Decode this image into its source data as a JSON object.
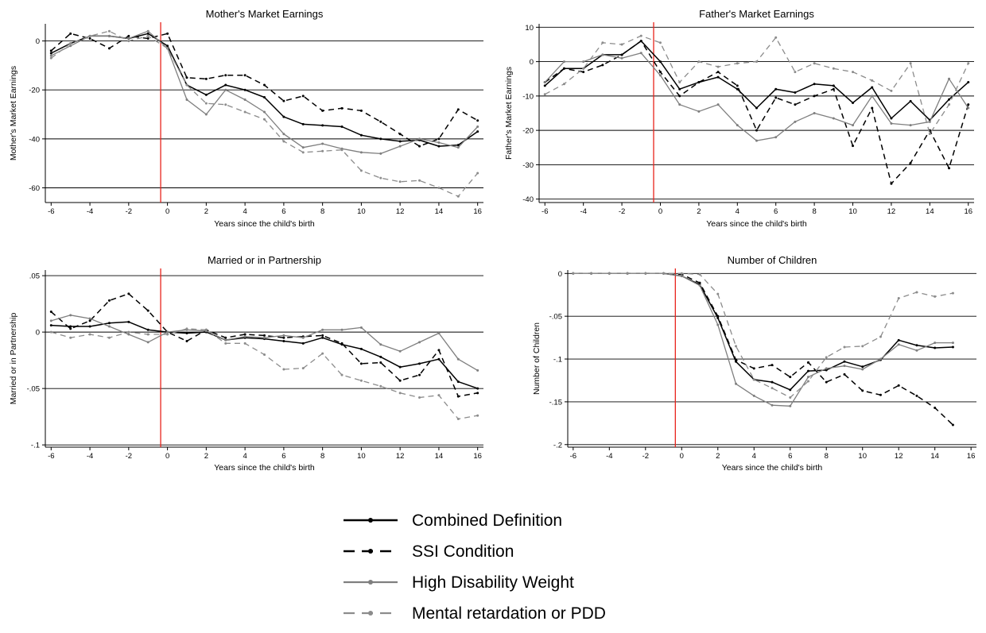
{
  "colors": {
    "combined": "#000000",
    "ssi": "#000000",
    "high": "#7f7f7f",
    "mental": "#8c8c8c",
    "event_line": "#e8231c",
    "grid": "#000000"
  },
  "legend": {
    "items": [
      {
        "key": "combined",
        "label": "Combined Definition",
        "style": "solid",
        "color": "#000000"
      },
      {
        "key": "ssi",
        "label": "SSI Condition",
        "style": "dashed",
        "color": "#000000"
      },
      {
        "key": "high",
        "label": "High Disability Weight",
        "style": "solid",
        "color": "#7f7f7f"
      },
      {
        "key": "mental",
        "label": "Mental retardation or PDD",
        "style": "dashed",
        "color": "#8c8c8c"
      }
    ]
  },
  "chart_data": [
    {
      "type": "line",
      "title": "Mother's Market Earnings",
      "xlabel": "Years since the child's birth",
      "ylabel": "Mother's Market Earnings",
      "xlim": [
        -6.3,
        16.3
      ],
      "ylim": [
        -66,
        7
      ],
      "xticks": [
        -6,
        -4,
        -2,
        0,
        2,
        4,
        6,
        8,
        10,
        12,
        14,
        16
      ],
      "xtick_labels": [
        "-6",
        "-4",
        "-2",
        "0",
        "2",
        "4",
        "6",
        "8",
        "10",
        "12",
        "14",
        "16"
      ],
      "yticks": [
        0,
        -20,
        -40,
        -60
      ],
      "ytick_labels": [
        "0",
        "-20",
        "-40",
        "-60"
      ],
      "grid": true,
      "event_line_x": -0.35,
      "x": [
        -6,
        -5,
        -4,
        -3,
        -2,
        -1,
        0,
        1,
        2,
        3,
        4,
        5,
        6,
        7,
        8,
        9,
        10,
        11,
        12,
        13,
        14,
        15,
        16
      ],
      "series": [
        {
          "name": "Combined Definition",
          "key": "combined",
          "values": [
            -5,
            -1,
            2,
            2,
            1,
            3,
            -2,
            -18,
            -22,
            -18,
            -20,
            -23,
            -31,
            -34,
            -34.5,
            -35,
            -38.5,
            -40,
            -41,
            -40.5,
            -43,
            -42.5,
            -37
          ]
        },
        {
          "name": "SSI Condition",
          "key": "ssi",
          "values": [
            -4,
            3,
            1,
            -3,
            2,
            1,
            3,
            -15,
            -15.5,
            -14,
            -14,
            -18,
            -24.5,
            -22.5,
            -28.5,
            -27.5,
            -28.5,
            -33,
            -38,
            -43,
            -40,
            -28,
            -32.5
          ]
        },
        {
          "name": "High Disability Weight",
          "key": "high",
          "values": [
            -6,
            -2,
            2,
            2,
            1,
            4,
            -3,
            -24,
            -30,
            -20,
            -24,
            -29,
            -38,
            -43.5,
            -42,
            -44,
            -45.5,
            -46,
            -43,
            -40,
            -41.5,
            -43.5,
            -35
          ]
        },
        {
          "name": "Mental retardation or PDD",
          "key": "mental",
          "values": [
            -7,
            -1,
            2,
            4,
            0,
            2,
            -3,
            -18,
            -25.5,
            -26,
            -29,
            -32,
            -41,
            -45.5,
            -45,
            -44.5,
            -53,
            -56,
            -57.5,
            -57,
            -60,
            -63.5,
            -54
          ]
        }
      ]
    },
    {
      "type": "line",
      "title": "Father's Market Earnings",
      "xlabel": "Years since the child's birth",
      "ylabel": "Father's Market Earnings",
      "xlim": [
        -6.3,
        16.3
      ],
      "ylim": [
        -41,
        11
      ],
      "xticks": [
        -6,
        -4,
        -2,
        0,
        2,
        4,
        6,
        8,
        10,
        12,
        14,
        16
      ],
      "xtick_labels": [
        "-6",
        "-4",
        "-2",
        "0",
        "2",
        "4",
        "6",
        "8",
        "10",
        "12",
        "14",
        "16"
      ],
      "yticks": [
        10,
        0,
        -10,
        -20,
        -30,
        -40
      ],
      "ytick_labels": [
        "10",
        "0",
        "-10",
        "-20",
        "-30",
        "-40"
      ],
      "grid": true,
      "event_line_x": -0.35,
      "x": [
        -6,
        -5,
        -4,
        -3,
        -2,
        -1,
        0,
        1,
        2,
        3,
        4,
        5,
        6,
        7,
        8,
        9,
        10,
        11,
        12,
        13,
        14,
        15,
        16
      ],
      "series": [
        {
          "name": "Combined Definition",
          "key": "combined",
          "values": [
            -7,
            -2,
            -2,
            2,
            2,
            6,
            0,
            -8,
            -6,
            -4.5,
            -8,
            -13.5,
            -8,
            -9,
            -6.5,
            -7,
            -12,
            -7.5,
            -16.5,
            -11.5,
            -17,
            -11,
            -6
          ]
        },
        {
          "name": "SSI Condition",
          "key": "ssi",
          "values": [
            -6,
            -2,
            -3,
            -1,
            2,
            6,
            -3,
            -10,
            -6,
            -3,
            -7,
            -20,
            -10.5,
            -12.5,
            -10,
            -8,
            -24.5,
            -13.5,
            -35.5,
            -29.5,
            -20,
            -31,
            -12.5
          ]
        },
        {
          "name": "High Disability Weight",
          "key": "high",
          "values": [
            -6,
            0,
            0,
            2,
            1,
            2.5,
            -4,
            -12.5,
            -14.5,
            -12.5,
            -18.5,
            -23,
            -22,
            -17.5,
            -15,
            -16.5,
            -18.5,
            -10,
            -18,
            -18.5,
            -17.5,
            -5,
            -13.5
          ]
        },
        {
          "name": "Mental retardation or PDD",
          "key": "mental",
          "values": [
            -9.5,
            -6.5,
            -2,
            5.5,
            5,
            7.5,
            5.5,
            -6,
            0,
            -1.5,
            -0.5,
            0,
            7,
            -3,
            -0.5,
            -2,
            -3,
            -5.5,
            -8.5,
            -0.5,
            -21,
            -12.5,
            -0.5
          ]
        }
      ]
    },
    {
      "type": "line",
      "title": "Married or in Partnership",
      "xlabel": "Years since the child's birth",
      "ylabel": "Married or in Partnership",
      "xlim": [
        -6.3,
        16.3
      ],
      "ylim": [
        -0.102,
        0.055
      ],
      "xticks": [
        -6,
        -4,
        -2,
        0,
        2,
        4,
        6,
        8,
        10,
        12,
        14,
        16
      ],
      "xtick_labels": [
        "-6",
        "-4",
        "-2",
        "0",
        "2",
        "4",
        "6",
        "8",
        "10",
        "12",
        "14",
        "16"
      ],
      "yticks": [
        0.05,
        0,
        -0.05,
        -0.1
      ],
      "ytick_labels": [
        ".05",
        "0",
        "-.05",
        "-.1"
      ],
      "grid": true,
      "event_line_x": -0.35,
      "x": [
        -6,
        -5,
        -4,
        -3,
        -2,
        -1,
        0,
        1,
        2,
        3,
        4,
        5,
        6,
        7,
        8,
        9,
        10,
        11,
        12,
        13,
        14,
        15,
        16
      ],
      "series": [
        {
          "name": "Combined Definition",
          "key": "combined",
          "values": [
            0.006,
            0.005,
            0.005,
            0.008,
            0.009,
            0.002,
            0,
            -0.001,
            0,
            -0.007,
            -0.005,
            -0.006,
            -0.008,
            -0.01,
            -0.005,
            -0.011,
            -0.015,
            -0.022,
            -0.031,
            -0.028,
            -0.024,
            -0.044,
            -0.05
          ]
        },
        {
          "name": "SSI Condition",
          "key": "ssi",
          "values": [
            0.018,
            0.003,
            0.01,
            0.028,
            0.034,
            0.019,
            0,
            -0.008,
            0.002,
            -0.005,
            -0.002,
            -0.003,
            -0.005,
            -0.004,
            -0.003,
            -0.01,
            -0.028,
            -0.027,
            -0.043,
            -0.038,
            -0.016,
            -0.057,
            -0.054
          ]
        },
        {
          "name": "High Disability Weight",
          "key": "high",
          "values": [
            0.01,
            0.015,
            0.012,
            0.005,
            -0.002,
            -0.009,
            0,
            0.002,
            0.001,
            -0.007,
            -0.004,
            -0.005,
            -0.003,
            -0.005,
            0.002,
            0.002,
            0.004,
            -0.011,
            -0.017,
            -0.009,
            -0.001,
            -0.024,
            -0.034
          ]
        },
        {
          "name": "Mental retardation or PDD",
          "key": "mental",
          "values": [
            0,
            -0.005,
            -0.002,
            -0.005,
            0,
            -0.002,
            -0.002,
            0.003,
            0.002,
            -0.01,
            -0.01,
            -0.02,
            -0.033,
            -0.032,
            -0.019,
            -0.038,
            -0.043,
            -0.048,
            -0.054,
            -0.058,
            -0.056,
            -0.077,
            -0.074
          ]
        }
      ]
    },
    {
      "type": "line",
      "title": "Number of Children",
      "xlabel": "Years since the child's birth",
      "ylabel": "Number of Children",
      "xlim": [
        -6.3,
        16.3
      ],
      "ylim": [
        -0.203,
        0.004
      ],
      "xticks": [
        -6,
        -4,
        -2,
        0,
        2,
        4,
        6,
        8,
        10,
        12,
        14,
        16
      ],
      "xtick_labels": [
        "-6",
        "-4",
        "-2",
        "0",
        "2",
        "4",
        "6",
        "8",
        "10",
        "12",
        "14",
        "16"
      ],
      "yticks": [
        0,
        -0.05,
        -0.1,
        -0.15,
        -0.2
      ],
      "ytick_labels": [
        "0",
        "-.05",
        "-.1",
        "-.15",
        "-.2"
      ],
      "grid": true,
      "event_line_x": -0.35,
      "x": [
        -6,
        -5,
        -4,
        -3,
        -2,
        -1,
        0,
        1,
        2,
        3,
        4,
        5,
        6,
        7,
        8,
        9,
        10,
        11,
        12,
        13,
        14,
        15
      ],
      "series": [
        {
          "name": "Combined Definition",
          "key": "combined",
          "values": [
            0,
            0,
            0,
            0,
            0,
            0,
            -0.003,
            -0.013,
            -0.052,
            -0.103,
            -0.124,
            -0.127,
            -0.136,
            -0.114,
            -0.113,
            -0.103,
            -0.109,
            -0.101,
            -0.078,
            -0.084,
            -0.087,
            -0.086
          ]
        },
        {
          "name": "SSI Condition",
          "key": "ssi",
          "values": [
            0,
            0,
            0,
            0,
            0,
            0,
            -0.001,
            -0.011,
            -0.05,
            -0.101,
            -0.111,
            -0.107,
            -0.121,
            -0.104,
            -0.127,
            -0.118,
            -0.137,
            -0.142,
            -0.131,
            -0.143,
            -0.157,
            -0.177
          ]
        },
        {
          "name": "High Disability Weight",
          "key": "high",
          "values": [
            0,
            0,
            0,
            0,
            0,
            0,
            -0.003,
            -0.014,
            -0.06,
            -0.129,
            -0.143,
            -0.154,
            -0.155,
            -0.121,
            -0.111,
            -0.108,
            -0.112,
            -0.1,
            -0.083,
            -0.09,
            -0.081,
            -0.081
          ]
        },
        {
          "name": "Mental retardation or PDD",
          "key": "mental",
          "values": [
            0,
            0,
            0,
            0,
            0,
            0,
            0,
            -0.001,
            -0.024,
            -0.085,
            -0.124,
            -0.134,
            -0.145,
            -0.126,
            -0.098,
            -0.086,
            -0.085,
            -0.074,
            -0.029,
            -0.022,
            -0.027,
            -0.023
          ]
        }
      ]
    }
  ]
}
